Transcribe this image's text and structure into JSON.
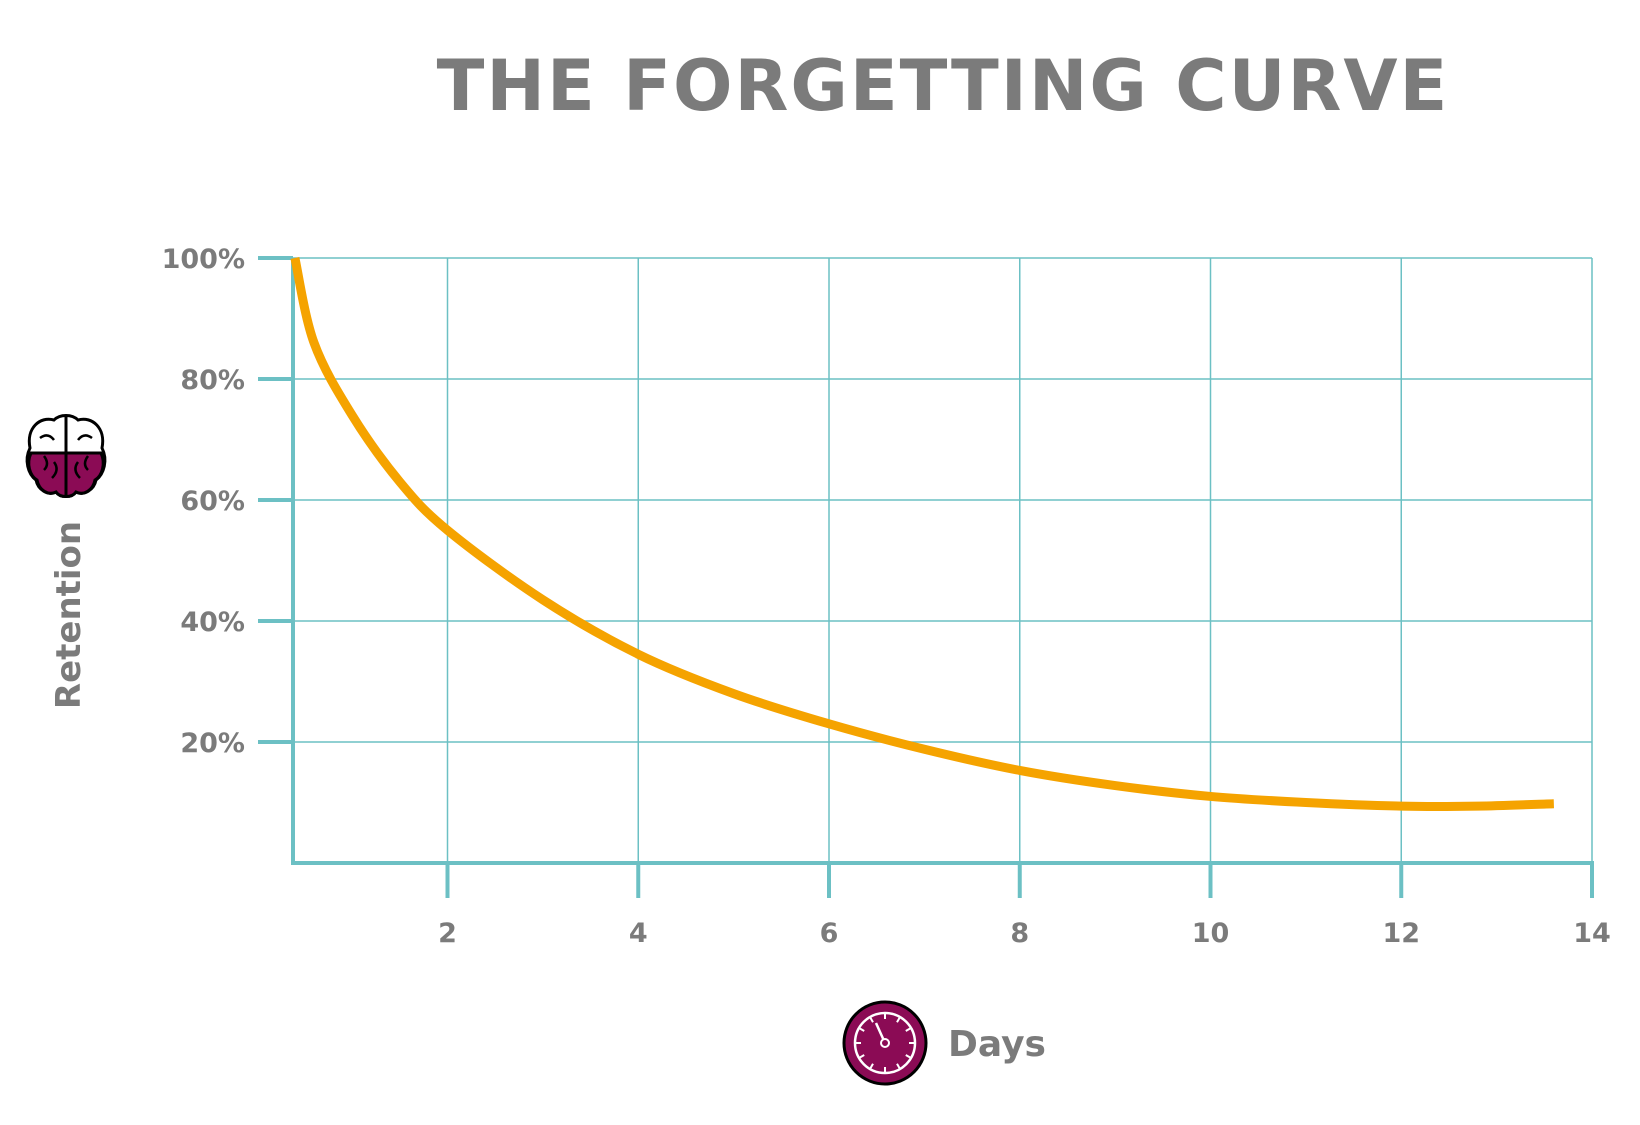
{
  "chart_data": {
    "type": "line",
    "title": "THE FORGETTING CURVE",
    "xlabel": "Days",
    "ylabel": "Retention",
    "xlim": [
      0.38,
      14
    ],
    "ylim": [
      0,
      100
    ],
    "x_ticks": [
      2,
      4,
      6,
      8,
      10,
      12,
      14
    ],
    "x_tick_labels": [
      "2",
      "4",
      "6",
      "8",
      "10",
      "12",
      "14"
    ],
    "y_ticks": [
      20,
      40,
      60,
      80,
      100
    ],
    "y_tick_labels": [
      "20%",
      "40%",
      "60%",
      "80%",
      "100%"
    ],
    "grid": true,
    "series": [
      {
        "x": [
          0.4,
          0.6,
          1,
          1.5,
          2,
          3,
          4,
          5,
          6,
          7,
          8,
          9,
          10,
          11,
          12,
          12.8,
          13.6
        ],
        "y": [
          100,
          86,
          74,
          63,
          55,
          43.5,
          34.5,
          28,
          23,
          18.8,
          15.3,
          12.8,
          11,
          10,
          9.4,
          9.4,
          9.8
        ],
        "color": "#f5a300"
      }
    ],
    "colors": {
      "grid": "#6cc0c4",
      "text": "#7b7b7b",
      "icon": "#8b0b55"
    },
    "icons": {
      "y_axis": "brain-icon",
      "x_axis": "clock-icon"
    }
  }
}
